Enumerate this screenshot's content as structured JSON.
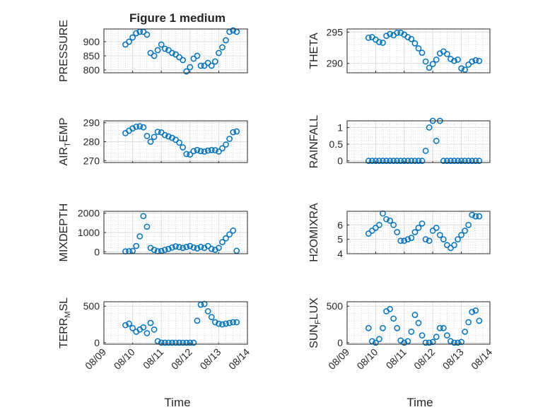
{
  "figure": {
    "title": "Figure 1 medium",
    "xlabel": "Time",
    "marker_color": "#0072BD",
    "grid": "on",
    "date_ticks": [
      "08/09",
      "08/10",
      "08/11",
      "08/12",
      "08/13",
      "08/14"
    ]
  },
  "chart_data": [
    {
      "type": "scatter",
      "name": "PRESSURE",
      "ylabel_main": "PRESSURE",
      "ylabel_sub": "",
      "xlim": [
        "08/09",
        "08/14"
      ],
      "ylim": [
        790,
        945
      ],
      "yticks": [
        800,
        850,
        900
      ],
      "x": [
        "08/09 18:00",
        "08/09 21:00",
        "08/10 00:00",
        "08/10 03:00",
        "08/10 06:00",
        "08/10 09:00",
        "08/10 12:00",
        "08/10 15:00",
        "08/10 18:00",
        "08/10 21:00",
        "08/11 00:00",
        "08/11 03:00",
        "08/11 06:00",
        "08/11 09:00",
        "08/11 12:00",
        "08/11 15:00",
        "08/11 18:00",
        "08/11 21:00",
        "08/12 00:00",
        "08/12 03:00",
        "08/12 06:00",
        "08/12 09:00",
        "08/12 12:00",
        "08/12 15:00",
        "08/12 18:00",
        "08/12 21:00",
        "08/13 00:00",
        "08/13 03:00",
        "08/13 06:00",
        "08/13 09:00",
        "08/13 12:00",
        "08/13 15:00"
      ],
      "y": [
        890,
        900,
        915,
        930,
        935,
        935,
        925,
        860,
        850,
        870,
        890,
        875,
        870,
        860,
        855,
        845,
        835,
        795,
        810,
        840,
        850,
        815,
        815,
        825,
        815,
        830,
        860,
        880,
        905,
        935,
        940,
        935
      ]
    },
    {
      "type": "scatter",
      "name": "THETA",
      "ylabel_main": "THETA",
      "ylabel_sub": "",
      "xlim": [
        "08/09",
        "08/14"
      ],
      "ylim": [
        288.5,
        295.5
      ],
      "yticks": [
        290,
        295
      ],
      "x": [
        "08/09 18:00",
        "08/09 21:00",
        "08/10 00:00",
        "08/10 03:00",
        "08/10 06:00",
        "08/10 09:00",
        "08/10 12:00",
        "08/10 15:00",
        "08/10 18:00",
        "08/10 21:00",
        "08/11 00:00",
        "08/11 03:00",
        "08/11 06:00",
        "08/11 09:00",
        "08/11 12:00",
        "08/11 15:00",
        "08/11 18:00",
        "08/11 21:00",
        "08/12 00:00",
        "08/12 03:00",
        "08/12 06:00",
        "08/12 09:00",
        "08/12 12:00",
        "08/12 15:00",
        "08/12 18:00",
        "08/12 21:00",
        "08/13 00:00",
        "08/13 03:00",
        "08/13 06:00",
        "08/13 09:00",
        "08/13 12:00",
        "08/13 15:00"
      ],
      "y": [
        294.1,
        294.2,
        293.8,
        293.4,
        293.3,
        294.4,
        294.7,
        294.5,
        294.9,
        294.9,
        294.6,
        294.2,
        293.9,
        293.2,
        292.4,
        291.7,
        290.3,
        289.3,
        289.9,
        290.6,
        291.6,
        291.9,
        291.5,
        290.7,
        290.4,
        290.6,
        289.2,
        289.0,
        289.8,
        290.3,
        290.5,
        290.4
      ]
    },
    {
      "type": "scatter",
      "name": "AIR_TEMP",
      "ylabel_main": "AIR",
      "ylabel_sub": "T",
      "ylabel_rest": "EMP",
      "xlim": [
        "08/09",
        "08/14"
      ],
      "ylim": [
        269,
        291
      ],
      "yticks": [
        270,
        280,
        290
      ],
      "x": [
        "08/09 18:00",
        "08/09 21:00",
        "08/10 00:00",
        "08/10 03:00",
        "08/10 06:00",
        "08/10 09:00",
        "08/10 12:00",
        "08/10 15:00",
        "08/10 18:00",
        "08/10 21:00",
        "08/11 00:00",
        "08/11 03:00",
        "08/11 06:00",
        "08/11 09:00",
        "08/11 12:00",
        "08/11 15:00",
        "08/11 18:00",
        "08/11 21:00",
        "08/12 00:00",
        "08/12 03:00",
        "08/12 06:00",
        "08/12 09:00",
        "08/12 12:00",
        "08/12 15:00",
        "08/12 18:00",
        "08/12 21:00",
        "08/13 00:00",
        "08/13 03:00",
        "08/13 06:00",
        "08/13 09:00",
        "08/13 12:00",
        "08/13 15:00"
      ],
      "y": [
        284.5,
        285.8,
        287.0,
        287.9,
        288.1,
        287.6,
        283.0,
        280.0,
        282.5,
        285.2,
        284.9,
        283.5,
        282.8,
        282.0,
        281.0,
        279.5,
        277.0,
        273.5,
        273.2,
        275.0,
        275.6,
        275.0,
        274.8,
        275.3,
        275.6,
        275.5,
        274.8,
        276.5,
        278.5,
        281.5,
        285.0,
        285.4
      ]
    },
    {
      "type": "scatter",
      "name": "RAINFALL",
      "ylabel_main": "RAINFALL",
      "ylabel_sub": "",
      "xlim": [
        "08/09",
        "08/14"
      ],
      "ylim": [
        -0.05,
        1.2
      ],
      "yticks": [
        0,
        0.5,
        1
      ],
      "x": [
        "08/09 18:00",
        "08/09 21:00",
        "08/10 00:00",
        "08/10 03:00",
        "08/10 06:00",
        "08/10 09:00",
        "08/10 12:00",
        "08/10 15:00",
        "08/10 18:00",
        "08/10 21:00",
        "08/11 00:00",
        "08/11 03:00",
        "08/11 06:00",
        "08/11 09:00",
        "08/11 12:00",
        "08/11 15:00",
        "08/11 18:00",
        "08/11 21:00",
        "08/12 00:00",
        "08/12 03:00",
        "08/12 06:00",
        "08/12 09:00",
        "08/12 12:00",
        "08/12 15:00",
        "08/12 18:00",
        "08/12 21:00",
        "08/13 00:00",
        "08/13 03:00",
        "08/13 06:00",
        "08/13 09:00",
        "08/13 12:00",
        "08/13 15:00"
      ],
      "y": [
        0,
        0,
        0,
        0,
        0,
        0,
        0,
        0,
        0,
        0,
        0,
        0,
        0,
        0,
        0,
        0,
        0.3,
        1.0,
        1.2,
        0.6,
        1.2,
        0,
        0,
        0,
        0,
        0,
        0,
        0,
        0,
        0,
        0,
        0
      ]
    },
    {
      "type": "scatter",
      "name": "MIXDEPTH",
      "ylabel_main": "MIXDEPTH",
      "ylabel_sub": "",
      "xlim": [
        "08/09",
        "08/14"
      ],
      "ylim": [
        -100,
        2100
      ],
      "yticks": [
        0,
        1000,
        2000
      ],
      "x": [
        "08/09 18:00",
        "08/09 21:00",
        "08/10 00:00",
        "08/10 03:00",
        "08/10 06:00",
        "08/10 09:00",
        "08/10 12:00",
        "08/10 15:00",
        "08/10 18:00",
        "08/10 21:00",
        "08/11 00:00",
        "08/11 03:00",
        "08/11 06:00",
        "08/11 09:00",
        "08/11 12:00",
        "08/11 15:00",
        "08/11 18:00",
        "08/11 21:00",
        "08/12 00:00",
        "08/12 03:00",
        "08/12 06:00",
        "08/12 09:00",
        "08/12 12:00",
        "08/12 15:00",
        "08/12 18:00",
        "08/12 21:00",
        "08/13 00:00",
        "08/13 03:00",
        "08/13 06:00",
        "08/13 09:00",
        "08/13 12:00",
        "08/13 15:00"
      ],
      "y": [
        20,
        30,
        40,
        300,
        800,
        1850,
        1300,
        200,
        100,
        30,
        40,
        100,
        150,
        220,
        280,
        240,
        200,
        250,
        300,
        220,
        180,
        250,
        200,
        300,
        150,
        100,
        200,
        500,
        700,
        900,
        1100,
        50
      ]
    },
    {
      "type": "scatter",
      "name": "H2OMIXRA",
      "ylabel_main": "H2OMIXRA",
      "ylabel_sub": "",
      "xlim": [
        "08/09",
        "08/14"
      ],
      "ylim": [
        4.0,
        6.95
      ],
      "yticks": [
        4,
        5,
        6
      ],
      "x": [
        "08/09 18:00",
        "08/09 21:00",
        "08/10 00:00",
        "08/10 03:00",
        "08/10 06:00",
        "08/10 09:00",
        "08/10 12:00",
        "08/10 15:00",
        "08/10 18:00",
        "08/10 21:00",
        "08/11 00:00",
        "08/11 03:00",
        "08/11 06:00",
        "08/11 09:00",
        "08/11 12:00",
        "08/11 15:00",
        "08/11 18:00",
        "08/11 21:00",
        "08/12 00:00",
        "08/12 03:00",
        "08/12 06:00",
        "08/12 09:00",
        "08/12 12:00",
        "08/12 15:00",
        "08/12 18:00",
        "08/12 21:00",
        "08/13 00:00",
        "08/13 03:00",
        "08/13 06:00",
        "08/13 09:00",
        "08/13 12:00",
        "08/13 15:00"
      ],
      "y": [
        5.4,
        5.6,
        5.8,
        6.0,
        6.8,
        6.4,
        6.3,
        6.0,
        5.5,
        4.9,
        4.9,
        5.0,
        5.1,
        5.5,
        5.8,
        6.1,
        5.0,
        4.9,
        5.6,
        5.8,
        5.3,
        5.0,
        4.6,
        4.4,
        4.6,
        5.0,
        5.3,
        5.6,
        6.0,
        6.7,
        6.6,
        6.6
      ]
    },
    {
      "type": "scatter",
      "name": "TERR_MSL",
      "ylabel_main": "TERR",
      "ylabel_sub": "M",
      "ylabel_rest": "SL",
      "xlim": [
        "08/09",
        "08/14"
      ],
      "ylim": [
        -20,
        560
      ],
      "yticks": [
        0,
        500
      ],
      "x": [
        "08/09 18:00",
        "08/09 21:00",
        "08/10 00:00",
        "08/10 03:00",
        "08/10 06:00",
        "08/10 09:00",
        "08/10 12:00",
        "08/10 15:00",
        "08/10 18:00",
        "08/10 21:00",
        "08/11 00:00",
        "08/11 03:00",
        "08/11 06:00",
        "08/11 09:00",
        "08/11 12:00",
        "08/11 15:00",
        "08/11 18:00",
        "08/11 21:00",
        "08/12 00:00",
        "08/12 03:00",
        "08/12 06:00",
        "08/12 09:00",
        "08/12 12:00",
        "08/12 15:00",
        "08/12 18:00",
        "08/12 21:00",
        "08/13 00:00",
        "08/13 03:00",
        "08/13 06:00",
        "08/13 09:00",
        "08/13 12:00",
        "08/13 15:00"
      ],
      "y": [
        240,
        260,
        200,
        150,
        180,
        210,
        130,
        270,
        180,
        20,
        0,
        0,
        0,
        0,
        0,
        0,
        0,
        0,
        0,
        0,
        300,
        520,
        530,
        430,
        350,
        280,
        260,
        250,
        260,
        270,
        280,
        280
      ]
    },
    {
      "type": "scatter",
      "name": "SUN_FLUX",
      "ylabel_main": "SUN",
      "ylabel_sub": "F",
      "ylabel_rest": "LUX",
      "xlim": [
        "08/09",
        "08/14"
      ],
      "ylim": [
        -20,
        560
      ],
      "yticks": [
        0,
        500
      ],
      "x": [
        "08/09 18:00",
        "08/09 21:00",
        "08/10 00:00",
        "08/10 03:00",
        "08/10 06:00",
        "08/10 09:00",
        "08/10 12:00",
        "08/10 15:00",
        "08/10 18:00",
        "08/10 21:00",
        "08/11 00:00",
        "08/11 03:00",
        "08/11 06:00",
        "08/11 09:00",
        "08/11 12:00",
        "08/11 15:00",
        "08/11 18:00",
        "08/11 21:00",
        "08/12 00:00",
        "08/12 03:00",
        "08/12 06:00",
        "08/12 09:00",
        "08/12 12:00",
        "08/12 15:00",
        "08/12 18:00",
        "08/12 21:00",
        "08/13 00:00",
        "08/13 03:00",
        "08/13 06:00",
        "08/13 09:00",
        "08/13 12:00",
        "08/13 15:00"
      ],
      "y": [
        200,
        20,
        0,
        50,
        200,
        430,
        460,
        330,
        200,
        30,
        0,
        20,
        150,
        380,
        270,
        100,
        0,
        0,
        10,
        80,
        200,
        200,
        100,
        20,
        0,
        0,
        10,
        150,
        280,
        420,
        440,
        300
      ]
    }
  ]
}
